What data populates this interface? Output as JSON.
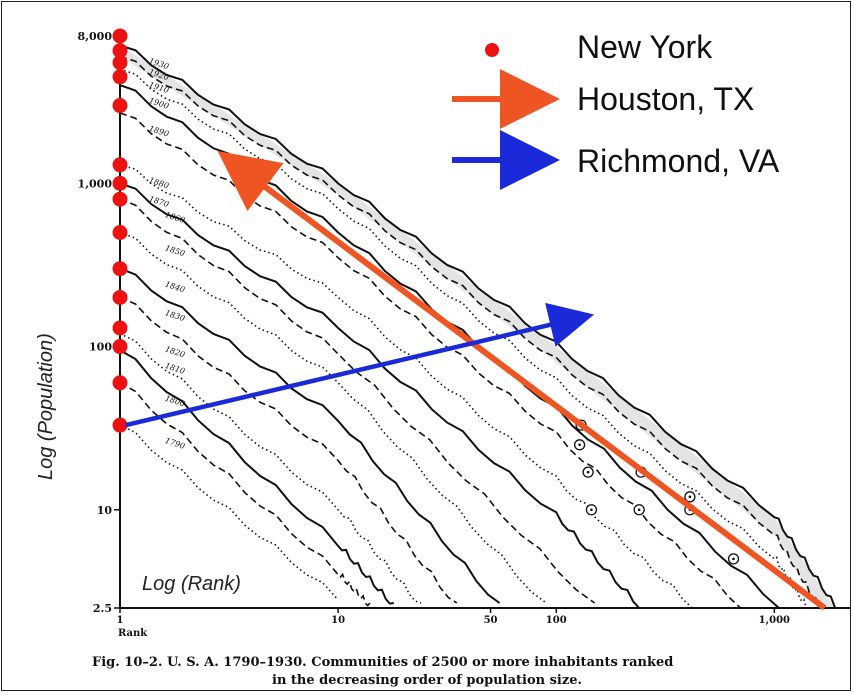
{
  "chart_data": {
    "type": "line",
    "x_scale": "log",
    "y_scale": "log",
    "xlabel": "Log (Rank)",
    "ylabel": "Log (Population)",
    "rank_label": "Rank",
    "caption_line1": "Fig. 10–2. U. S. A. 1790–1930. Communities of 2500 or more inhabitants ranked",
    "caption_line2": "in the decreasing order of population size.",
    "y_ticks": [
      {
        "value": 8000,
        "label": "8,000"
      },
      {
        "value": 1000,
        "label": "1,000"
      },
      {
        "value": 100,
        "label": "100"
      },
      {
        "value": 10,
        "label": "10"
      },
      {
        "value": 2.5,
        "label": "2.5"
      }
    ],
    "x_ticks": [
      {
        "value": 1,
        "label": "1"
      },
      {
        "value": 10,
        "label": "10"
      },
      {
        "value": 50,
        "label": "50"
      },
      {
        "value": 100,
        "label": "100"
      },
      {
        "value": 1000,
        "label": "1,000"
      }
    ],
    "year_curves": [
      {
        "year": "1930",
        "style": "solid",
        "rank_max": 1900,
        "y_points": [
          [
            1,
            7000
          ],
          [
            10,
            1000
          ],
          [
            100,
            100
          ],
          [
            1000,
            9
          ],
          [
            1900,
            2.5
          ]
        ]
      },
      {
        "year": "1920",
        "style": "dashed",
        "rank_max": 1600,
        "y_points": [
          [
            1,
            6000
          ],
          [
            10,
            850
          ],
          [
            100,
            80
          ],
          [
            1000,
            7
          ],
          [
            1600,
            2.5
          ]
        ]
      },
      {
        "year": "1910",
        "style": "dotted",
        "rank_max": 1400,
        "y_points": [
          [
            1,
            5000
          ],
          [
            10,
            700
          ],
          [
            100,
            60
          ],
          [
            1000,
            5
          ],
          [
            1400,
            2.5
          ]
        ]
      },
      {
        "year": "1900",
        "style": "solid",
        "rank_max": 1050,
        "y_points": [
          [
            1,
            4000
          ],
          [
            10,
            500
          ],
          [
            100,
            40
          ],
          [
            1050,
            2.5
          ]
        ]
      },
      {
        "year": "1890",
        "style": "dashed",
        "rank_max": 700,
        "y_points": [
          [
            1,
            2700
          ],
          [
            10,
            350
          ],
          [
            100,
            28
          ],
          [
            700,
            2.5
          ]
        ]
      },
      {
        "year": "1880",
        "style": "dotted",
        "rank_max": 420,
        "y_points": [
          [
            1,
            1300
          ],
          [
            10,
            200
          ],
          [
            100,
            15
          ],
          [
            420,
            2.5
          ]
        ]
      },
      {
        "year": "1870",
        "style": "solid",
        "rank_max": 240,
        "y_points": [
          [
            1,
            1000
          ],
          [
            10,
            130
          ],
          [
            100,
            9
          ],
          [
            240,
            2.5
          ]
        ]
      },
      {
        "year": "1860",
        "style": "dashed",
        "rank_max": 150,
        "y_points": [
          [
            1,
            800
          ],
          [
            10,
            90
          ],
          [
            150,
            2.5
          ]
        ]
      },
      {
        "year": "1850",
        "style": "dotted",
        "rank_max": 90,
        "y_points": [
          [
            1,
            500
          ],
          [
            10,
            60
          ],
          [
            90,
            2.5
          ]
        ]
      },
      {
        "year": "1840",
        "style": "solid",
        "rank_max": 55,
        "y_points": [
          [
            1,
            300
          ],
          [
            10,
            35
          ],
          [
            55,
            2.5
          ]
        ]
      },
      {
        "year": "1830",
        "style": "dashed",
        "rank_max": 35,
        "y_points": [
          [
            1,
            200
          ],
          [
            10,
            20
          ],
          [
            35,
            2.5
          ]
        ]
      },
      {
        "year": "1820",
        "style": "dotted",
        "rank_max": 24,
        "y_points": [
          [
            1,
            120
          ],
          [
            10,
            10
          ],
          [
            24,
            2.5
          ]
        ]
      },
      {
        "year": "1810",
        "style": "solid",
        "rank_max": 18,
        "y_points": [
          [
            1,
            95
          ],
          [
            10,
            6
          ],
          [
            18,
            2.5
          ]
        ]
      },
      {
        "year": "1800",
        "style": "dashed",
        "rank_max": 14,
        "y_points": [
          [
            1,
            60
          ],
          [
            10,
            4
          ],
          [
            14,
            2.5
          ]
        ]
      },
      {
        "year": "1790",
        "style": "dotted",
        "rank_max": 10,
        "y_points": [
          [
            1,
            33
          ],
          [
            10,
            2.8
          ]
        ]
      }
    ],
    "new_york_values": [
      8000,
      6500,
      5500,
      4500,
      3000,
      1300,
      1000,
      800,
      500,
      300,
      200,
      130,
      100,
      60,
      33
    ],
    "circled_points": [
      {
        "rank": 130,
        "value": 33
      },
      {
        "rank": 128,
        "value": 25
      },
      {
        "rank": 140,
        "value": 17
      },
      {
        "rank": 145,
        "value": 10
      },
      {
        "rank": 245,
        "value": 17
      },
      {
        "rank": 240,
        "value": 10
      },
      {
        "rank": 410,
        "value": 12
      },
      {
        "rank": 410,
        "value": 10
      },
      {
        "rank": 650,
        "value": 5
      }
    ],
    "houston_arrow": {
      "from": {
        "rank": 1700,
        "value": 2.5
      },
      "to": {
        "rank": 4.2,
        "value": 1050
      }
    },
    "richmond_arrow": {
      "from": {
        "rank": 1.06,
        "value": 33
      },
      "to": {
        "rank": 103,
        "value": 140
      }
    }
  },
  "legend": {
    "new_york": "New York",
    "houston": "Houston, TX",
    "richmond": "Richmond, VA"
  },
  "colors": {
    "new_york": "#ee1111",
    "houston": "#ee5522",
    "richmond": "#1a2ad8",
    "ink": "#111111"
  }
}
